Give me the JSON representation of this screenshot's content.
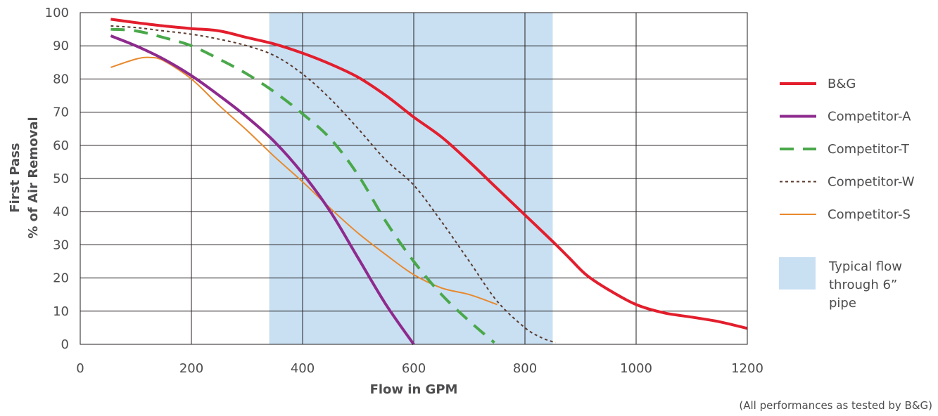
{
  "chart_data": {
    "type": "line",
    "xlabel": "Flow in GPM",
    "ylabel_line1": "First Pass",
    "ylabel_line2": "% of Air Removal",
    "xlim": [
      0,
      1200
    ],
    "ylim": [
      0,
      100
    ],
    "xticks": [
      0,
      200,
      400,
      600,
      800,
      1000,
      1200
    ],
    "yticks": [
      0,
      10,
      20,
      30,
      40,
      50,
      60,
      70,
      80,
      90,
      100
    ],
    "grid": true,
    "legend_position": "right",
    "shaded_band": {
      "x_range": [
        340,
        850
      ],
      "label_lines": [
        "Typical flow",
        "through 6”",
        "pipe"
      ],
      "color": "#c9e0f3"
    },
    "footnote": "(All performances as tested by B&G)",
    "series": [
      {
        "name": "B&G",
        "color": "#e31e2d",
        "style": "solid-thick",
        "points": [
          [
            55,
            98
          ],
          [
            100,
            97
          ],
          [
            150,
            96
          ],
          [
            200,
            95.2
          ],
          [
            250,
            94.5
          ],
          [
            300,
            92.5
          ],
          [
            350,
            90.5
          ],
          [
            400,
            87.8
          ],
          [
            450,
            84.5
          ],
          [
            500,
            80.5
          ],
          [
            550,
            75
          ],
          [
            600,
            68.5
          ],
          [
            650,
            62.5
          ],
          [
            700,
            55
          ],
          [
            750,
            47
          ],
          [
            800,
            39
          ],
          [
            850,
            31
          ],
          [
            880,
            26
          ],
          [
            910,
            21
          ],
          [
            950,
            16.5
          ],
          [
            1000,
            12
          ],
          [
            1050,
            9.5
          ],
          [
            1100,
            8.2
          ],
          [
            1150,
            6.8
          ],
          [
            1200,
            4.8
          ]
        ]
      },
      {
        "name": "Competitor-A",
        "color": "#8e2a8e",
        "style": "solid-thick",
        "points": [
          [
            55,
            93
          ],
          [
            100,
            90
          ],
          [
            150,
            86
          ],
          [
            200,
            81
          ],
          [
            250,
            75
          ],
          [
            300,
            68.5
          ],
          [
            350,
            61
          ],
          [
            400,
            51.5
          ],
          [
            450,
            40
          ],
          [
            500,
            26
          ],
          [
            550,
            12
          ],
          [
            600,
            0
          ]
        ]
      },
      {
        "name": "Competitor-T",
        "color": "#4aa84a",
        "style": "dashed",
        "points": [
          [
            55,
            95
          ],
          [
            100,
            94.5
          ],
          [
            150,
            92.5
          ],
          [
            200,
            90
          ],
          [
            250,
            86
          ],
          [
            300,
            81.5
          ],
          [
            350,
            76
          ],
          [
            400,
            69.5
          ],
          [
            450,
            62
          ],
          [
            500,
            51
          ],
          [
            550,
            37
          ],
          [
            600,
            25
          ],
          [
            650,
            15
          ],
          [
            700,
            7
          ],
          [
            745,
            0.5
          ]
        ]
      },
      {
        "name": "Competitor-W",
        "color": "#5a3a2e",
        "style": "dotted",
        "points": [
          [
            55,
            96
          ],
          [
            100,
            95.5
          ],
          [
            150,
            94.5
          ],
          [
            200,
            93.5
          ],
          [
            250,
            92
          ],
          [
            300,
            90
          ],
          [
            350,
            87
          ],
          [
            400,
            81.5
          ],
          [
            450,
            74
          ],
          [
            500,
            65
          ],
          [
            550,
            55.5
          ],
          [
            600,
            48
          ],
          [
            650,
            37
          ],
          [
            700,
            25
          ],
          [
            750,
            13
          ],
          [
            800,
            5
          ],
          [
            830,
            2
          ],
          [
            855,
            0.5
          ]
        ]
      },
      {
        "name": "Competitor-S",
        "color": "#e8892e",
        "style": "solid-thin",
        "points": [
          [
            55,
            83.5
          ],
          [
            100,
            86
          ],
          [
            125,
            86.5
          ],
          [
            150,
            85.5
          ],
          [
            200,
            80
          ],
          [
            250,
            72
          ],
          [
            300,
            64.5
          ],
          [
            350,
            56.5
          ],
          [
            400,
            49
          ],
          [
            450,
            41
          ],
          [
            500,
            33.5
          ],
          [
            550,
            27
          ],
          [
            600,
            21
          ],
          [
            650,
            17
          ],
          [
            700,
            15
          ],
          [
            750,
            12
          ]
        ]
      }
    ]
  }
}
